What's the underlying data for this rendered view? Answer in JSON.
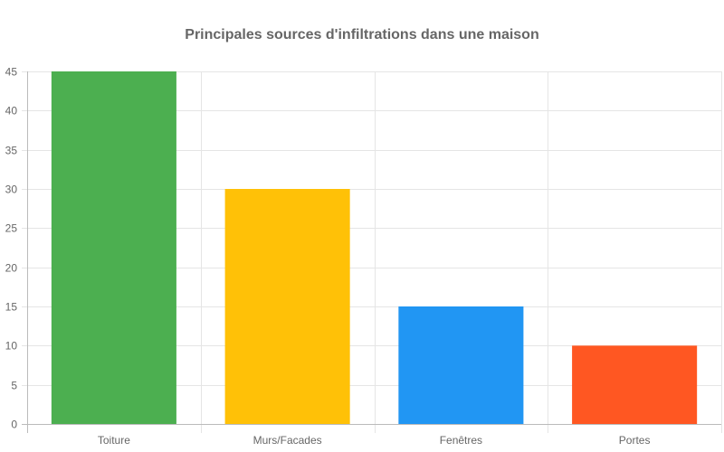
{
  "chart_data": {
    "type": "bar",
    "title": "Principales sources d'infiltrations dans une maison",
    "categories": [
      "Toiture",
      "Murs/Facades",
      "Fenêtres",
      "Portes"
    ],
    "values": [
      45,
      30,
      15,
      10
    ],
    "colors": [
      "#4CAF50",
      "#FFC107",
      "#2196F3",
      "#FF5722"
    ],
    "ylim": [
      0,
      45
    ],
    "yticks": [
      "0",
      "5",
      "10",
      "15",
      "20",
      "25",
      "30",
      "35",
      "40",
      "45"
    ],
    "grid": true,
    "gridColor": "#e5e5e5",
    "axisColor": "#bbbbbb"
  }
}
